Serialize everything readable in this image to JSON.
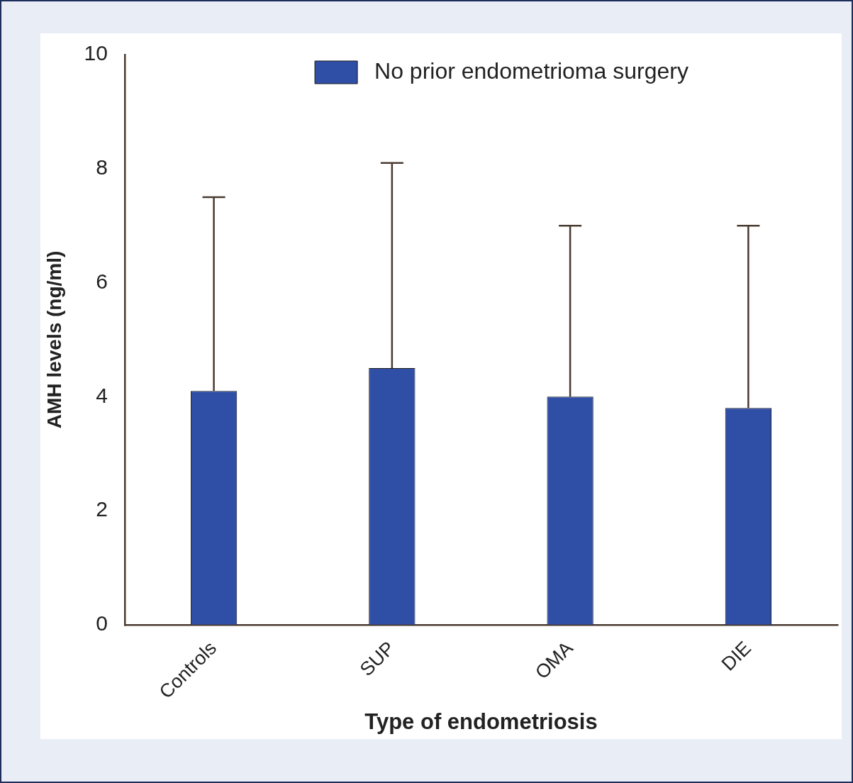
{
  "chart_data": {
    "type": "bar",
    "xlabel": "Type of endometriosis",
    "ylabel": "AMH levels (ng/ml)",
    "categories": [
      "Controls",
      "SUP",
      "OMA",
      "DIE"
    ],
    "series": [
      {
        "name": "No prior endometrioma surgery",
        "color": "#2f4ea6",
        "values": [
          4.1,
          4.5,
          4.0,
          3.8
        ],
        "errors": [
          [
            4.1,
            7.5
          ],
          [
            4.5,
            8.1
          ],
          [
            4.0,
            7.0
          ],
          [
            3.8,
            7.0
          ]
        ]
      }
    ],
    "ylim": [
      0,
      10
    ],
    "yticks": [
      0,
      2,
      4,
      6,
      8,
      10
    ],
    "grid": false,
    "legend": "top"
  }
}
